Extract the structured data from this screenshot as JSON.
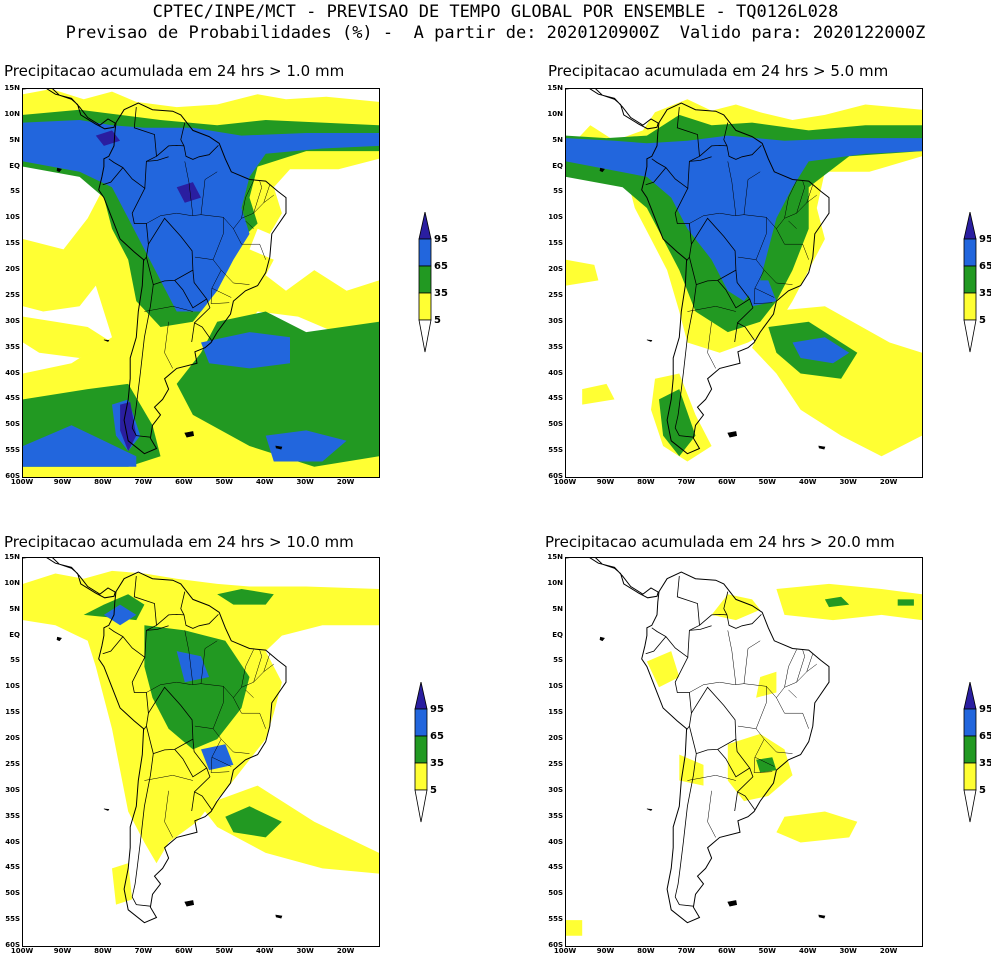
{
  "header": {
    "line1": "CPTEC/INPE/MCT - PREVISAO DE TEMPO GLOBAL POR ENSEMBLE - TQ0126L028",
    "line2": "Previsao de Probabilidades (%) -  A partir de: 2020120900Z  Valido para: 2020122000Z"
  },
  "panels": [
    {
      "id": "p1",
      "title": "Precipitacao acumulada em 24 hrs > 1.0 mm",
      "coverage": "high"
    },
    {
      "id": "p2",
      "title": "Precipitacao acumulada em 24 hrs > 5.0 mm",
      "coverage": "medium"
    },
    {
      "id": "p3",
      "title": "Precipitacao acumulada em 24 hrs > 10.0 mm",
      "coverage": "low"
    },
    {
      "id": "p4",
      "title": "Precipitacao acumulada em 24 hrs > 20.0 mm",
      "coverage": "minimal"
    }
  ],
  "lat_labels": [
    "15N",
    "10N",
    "5N",
    "EQ",
    "5S",
    "10S",
    "15S",
    "20S",
    "25S",
    "30S",
    "35S",
    "40S",
    "45S",
    "50S",
    "55S",
    "60S"
  ],
  "lon_labels": [
    "100W",
    "90W",
    "80W",
    "70W",
    "60W",
    "50W",
    "40W",
    "30W",
    "20W"
  ],
  "legend": {
    "labels": [
      "95",
      "65",
      "35",
      "5"
    ],
    "colors": {
      "c5": "#ffff33",
      "c35": "#229922",
      "c65": "#2266dd",
      "c95": "#2a1ea0"
    }
  }
}
